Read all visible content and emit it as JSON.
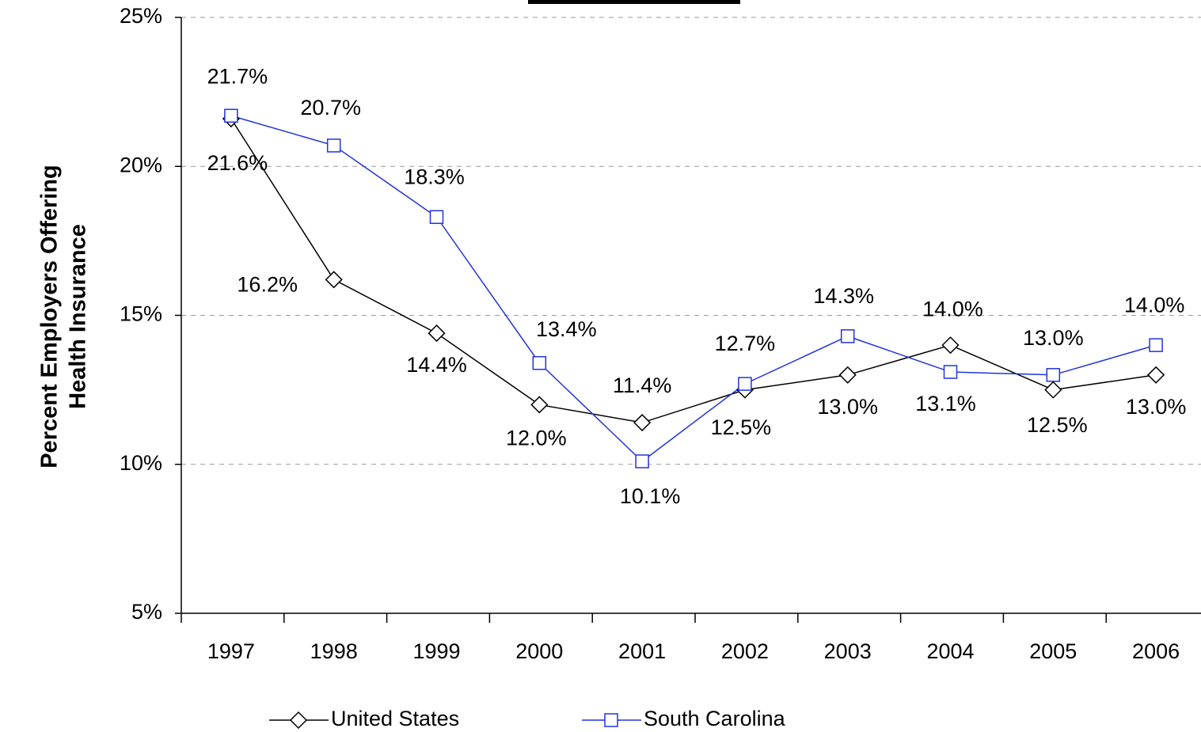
{
  "chart_data": {
    "type": "line",
    "y_label": [
      "Percent Employers Offering",
      "Health Insurance"
    ],
    "categories": [
      "1997",
      "1998",
      "1999",
      "2000",
      "2001",
      "2002",
      "2003",
      "2004",
      "2005",
      "2006"
    ],
    "series": [
      {
        "name": "United States",
        "color": "#000000",
        "marker": "diamond",
        "values": [
          21.6,
          16.2,
          14.4,
          12.0,
          11.4,
          12.5,
          13.0,
          14.0,
          12.5,
          13.0
        ],
        "value_labels": [
          "21.6%",
          "16.2%",
          "14.4%",
          "12.0%",
          "11.4%",
          "12.5%",
          "13.0%",
          "14.0%",
          "12.5%",
          "13.0%"
        ]
      },
      {
        "name": "South Carolina",
        "color": "#2233dd",
        "marker": "square",
        "values": [
          21.7,
          20.7,
          18.3,
          13.4,
          10.1,
          12.7,
          14.3,
          13.1,
          13.0,
          14.0
        ],
        "value_labels": [
          "21.7%",
          "20.7%",
          "18.3%",
          "13.4%",
          "10.1%",
          "12.7%",
          "14.3%",
          "13.1%",
          "13.0%",
          "14.0%"
        ]
      }
    ],
    "ylim": [
      5,
      25
    ],
    "yticks": [
      {
        "value": 5,
        "label": "5%"
      },
      {
        "value": 10,
        "label": "10%"
      },
      {
        "value": 15,
        "label": "15%"
      },
      {
        "value": 20,
        "label": "20%"
      },
      {
        "value": 25,
        "label": "25%"
      }
    ],
    "grid": true,
    "legend": "bottom"
  }
}
